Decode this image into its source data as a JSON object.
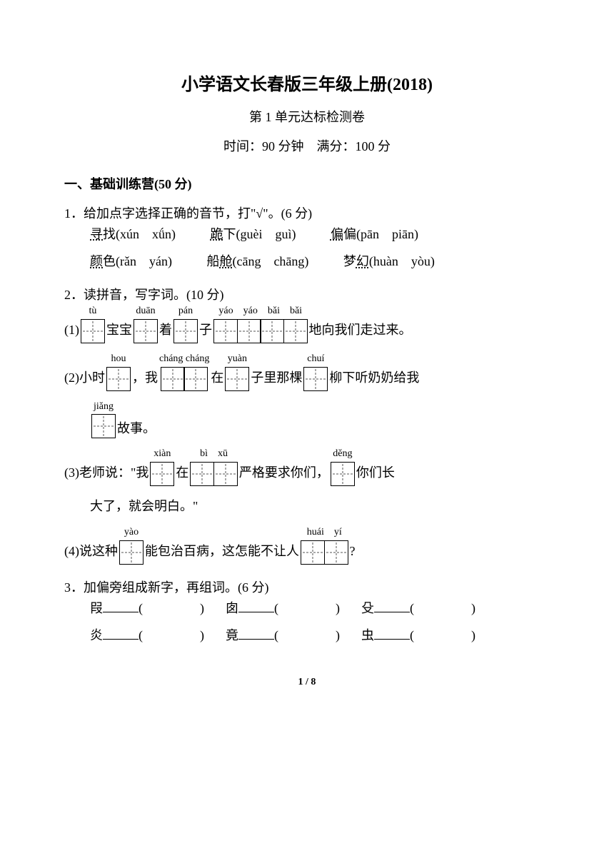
{
  "header": {
    "title": "小学语文长春版三年级上册(2018)",
    "subtitle": "第 1 单元达标检测卷",
    "info": "时间：90 分钟　满分：100 分"
  },
  "section": {
    "header": "一、基础训练营(50 分)"
  },
  "q1": {
    "prompt": "1．给加点字选择正确的音节，打\"√\"。(6 分)",
    "row1": [
      {
        "char": "寻",
        "rest": "找(xún　xǘn)"
      },
      {
        "char": "跪",
        "rest": "下(guèi　guì)"
      },
      {
        "char": "偏",
        "rest": "偏(pān　piān)"
      }
    ],
    "row2": [
      {
        "char": "颜",
        "rest": "色(rǎn　yán)"
      },
      {
        "pre": "船",
        "char": "舱",
        "rest": "(cāng　chāng)"
      },
      {
        "pre": "梦",
        "char": "幻",
        "rest": "(huàn　yòu)"
      }
    ]
  },
  "q2": {
    "prompt": "2．读拼音，写字词。(10 分)",
    "line1": {
      "num": "(1)",
      "parts": [
        {
          "pinyin": "tù",
          "boxes": 1
        },
        {
          "text": "宝宝"
        },
        {
          "pinyin": "duān",
          "boxes": 1
        },
        {
          "text": "着"
        },
        {
          "pinyin": "pán",
          "boxes": 1
        },
        {
          "text": "子"
        },
        {
          "pinyin": "yáo　yáo　bǎi　bǎi",
          "boxes": 4
        },
        {
          "text": "地向我们走过来。"
        }
      ]
    },
    "line2": {
      "num": "(2)",
      "parts": [
        {
          "text": "小时"
        },
        {
          "pinyin": "hou",
          "boxes": 1
        },
        {
          "text": "，我"
        },
        {
          "pinyin": "cháng cháng",
          "boxes": 2
        },
        {
          "text": "在"
        },
        {
          "pinyin": "yuàn",
          "boxes": 1
        },
        {
          "text": "子里那棵"
        },
        {
          "pinyin": "chuí",
          "boxes": 1
        },
        {
          "text": "柳下听奶奶给我"
        }
      ],
      "cont": [
        {
          "pinyin": "jiǎng",
          "boxes": 1
        },
        {
          "text": "故事。"
        }
      ]
    },
    "line3": {
      "num": "(3)",
      "parts": [
        {
          "text": "老师说：\"我"
        },
        {
          "pinyin": "xiàn",
          "boxes": 1
        },
        {
          "text": "在"
        },
        {
          "pinyin": "bì　xū",
          "boxes": 2
        },
        {
          "text": "严格要求你们，"
        },
        {
          "pinyin": "děng",
          "boxes": 1
        },
        {
          "text": "你们长"
        }
      ],
      "cont_text": "大了，就会明白。\""
    },
    "line4": {
      "num": "(4)",
      "parts": [
        {
          "text": "说这种"
        },
        {
          "pinyin": "yào",
          "boxes": 1
        },
        {
          "text": "能包治百病，这怎能不让人"
        },
        {
          "pinyin": "huái　yí",
          "boxes": 2
        },
        {
          "text": "?"
        }
      ]
    }
  },
  "q3": {
    "prompt": "3．加偏旁组成新字，再组词。(6 分)",
    "row1": [
      "叚",
      "囱",
      "殳"
    ],
    "row2": [
      "炎",
      "竟",
      "虫"
    ]
  },
  "pagenum": "1 / 8",
  "style": {
    "bg": "#ffffff",
    "fg": "#000000",
    "title_fontsize": 24,
    "body_fontsize": 18,
    "pinyin_fontsize": 14,
    "box_size": 34
  }
}
